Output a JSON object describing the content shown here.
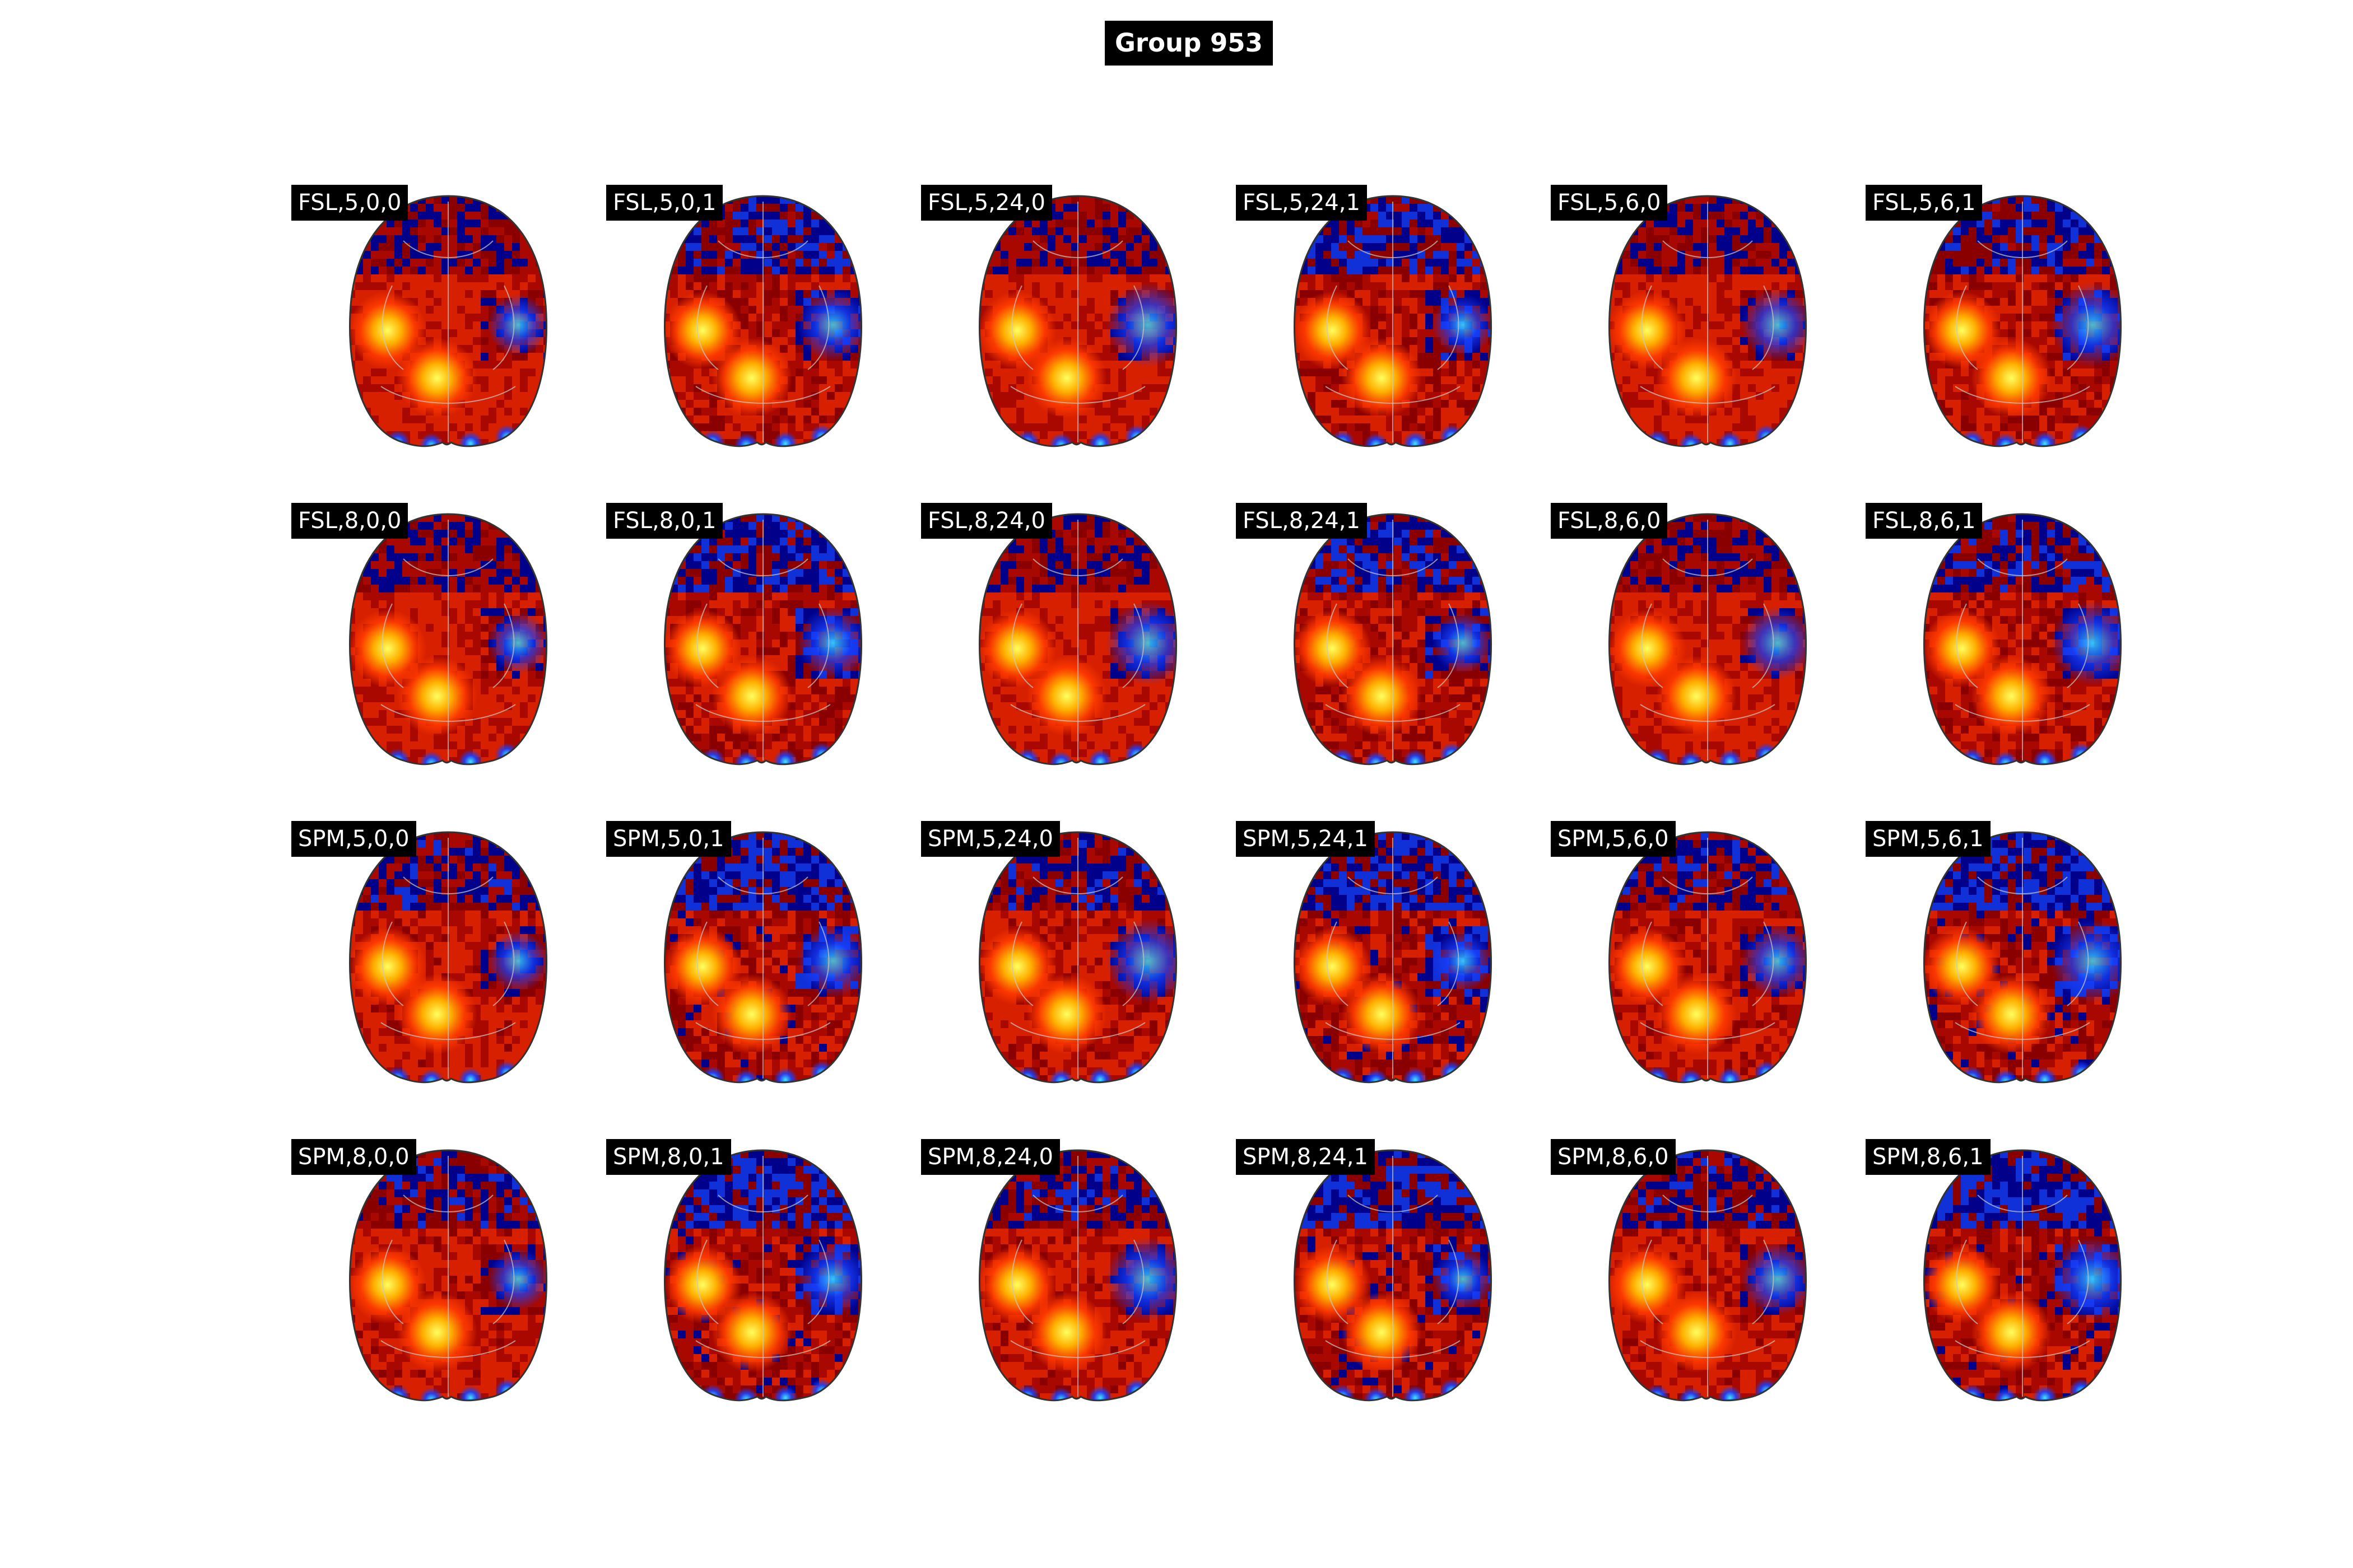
{
  "figure": {
    "title": "Group 953",
    "rows": [
      [
        "FSL,5,0,0",
        "FSL,5,0,1",
        "FSL,5,24,0",
        "FSL,5,24,1",
        "FSL,5,6,0",
        "FSL,5,6,1"
      ],
      [
        "FSL,8,0,0",
        "FSL,8,0,1",
        "FSL,8,24,0",
        "FSL,8,24,1",
        "FSL,8,6,0",
        "FSL,8,6,1"
      ],
      [
        "SPM,5,0,0",
        "SPM,5,0,1",
        "SPM,5,24,0",
        "SPM,5,24,1",
        "SPM,5,6,0",
        "SPM,5,6,1"
      ],
      [
        "SPM,8,0,0",
        "SPM,8,0,1",
        "SPM,8,24,0",
        "SPM,8,24,1",
        "SPM,8,6,0",
        "SPM,8,6,1"
      ]
    ]
  },
  "colors": {
    "background": "#ffffff",
    "label_bg": "#000000",
    "label_text": "#ffffff",
    "brain_outline": "#333333",
    "positive_hot": "#ffff60",
    "positive_mid": "#ff3a00",
    "positive_low": "#8a0000",
    "negative_low": "#00008a",
    "negative_mid": "#1a40ff",
    "negative_cold": "#40e8ff"
  }
}
